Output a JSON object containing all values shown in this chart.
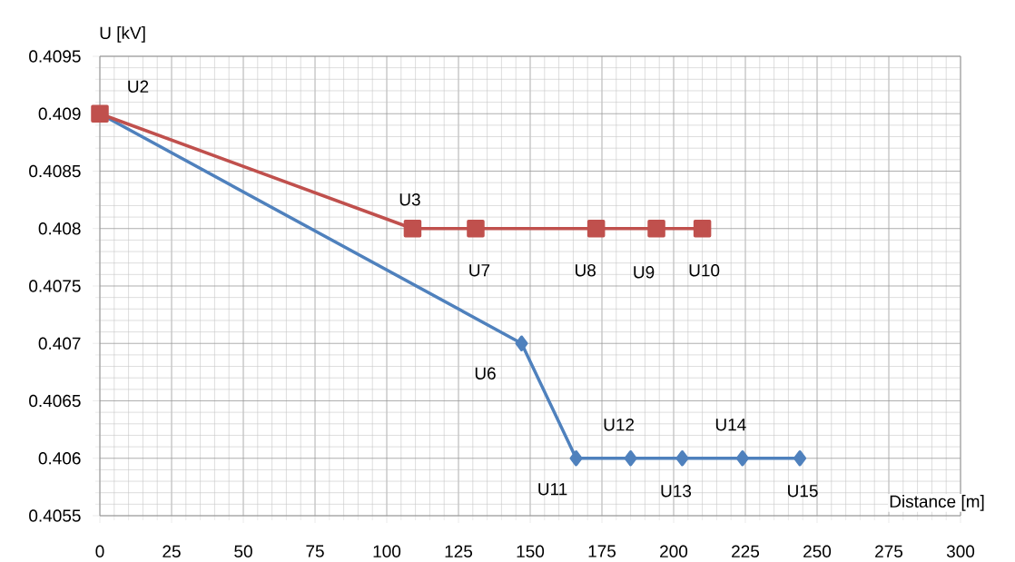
{
  "chart_data": {
    "type": "line",
    "xlabel": "Distance [m]",
    "ylabel": "U [kV]",
    "xlim": [
      0,
      300
    ],
    "xticks": [
      0,
      25,
      50,
      75,
      100,
      125,
      150,
      175,
      200,
      225,
      250,
      275,
      300
    ],
    "ylim": [
      0.4055,
      0.4095
    ],
    "yticks": [
      0.4055,
      0.406,
      0.4065,
      0.407,
      0.4075,
      0.408,
      0.4085,
      0.409,
      0.4095
    ],
    "grid": true,
    "series": [
      {
        "color": "#4f81bd",
        "marker": "diamond",
        "x": [
          0,
          147,
          166,
          185,
          203,
          224,
          244
        ],
        "values": [
          0.409,
          0.407,
          0.406,
          0.406,
          0.406,
          0.406,
          0.406
        ]
      },
      {
        "color": "#c0504d",
        "marker": "square",
        "x": [
          0,
          109,
          131,
          173,
          194,
          210
        ],
        "values": [
          0.409,
          0.408,
          0.408,
          0.408,
          0.408,
          0.408
        ]
      }
    ],
    "annotations": [
      {
        "text": "U2",
        "x": 0,
        "y": 0.409
      },
      {
        "text": "U3",
        "x": 109,
        "y": 0.408
      },
      {
        "text": "U7",
        "x": 131,
        "y": 0.408
      },
      {
        "text": "U8",
        "x": 173,
        "y": 0.408
      },
      {
        "text": "U9",
        "x": 194,
        "y": 0.408
      },
      {
        "text": "U10",
        "x": 210,
        "y": 0.408
      },
      {
        "text": "U6",
        "x": 147,
        "y": 0.407
      },
      {
        "text": "U11",
        "x": 166,
        "y": 0.406
      },
      {
        "text": "U12",
        "x": 185,
        "y": 0.406
      },
      {
        "text": "U13",
        "x": 203,
        "y": 0.406
      },
      {
        "text": "U14",
        "x": 224,
        "y": 0.406
      },
      {
        "text": "U15",
        "x": 244,
        "y": 0.406
      }
    ]
  }
}
